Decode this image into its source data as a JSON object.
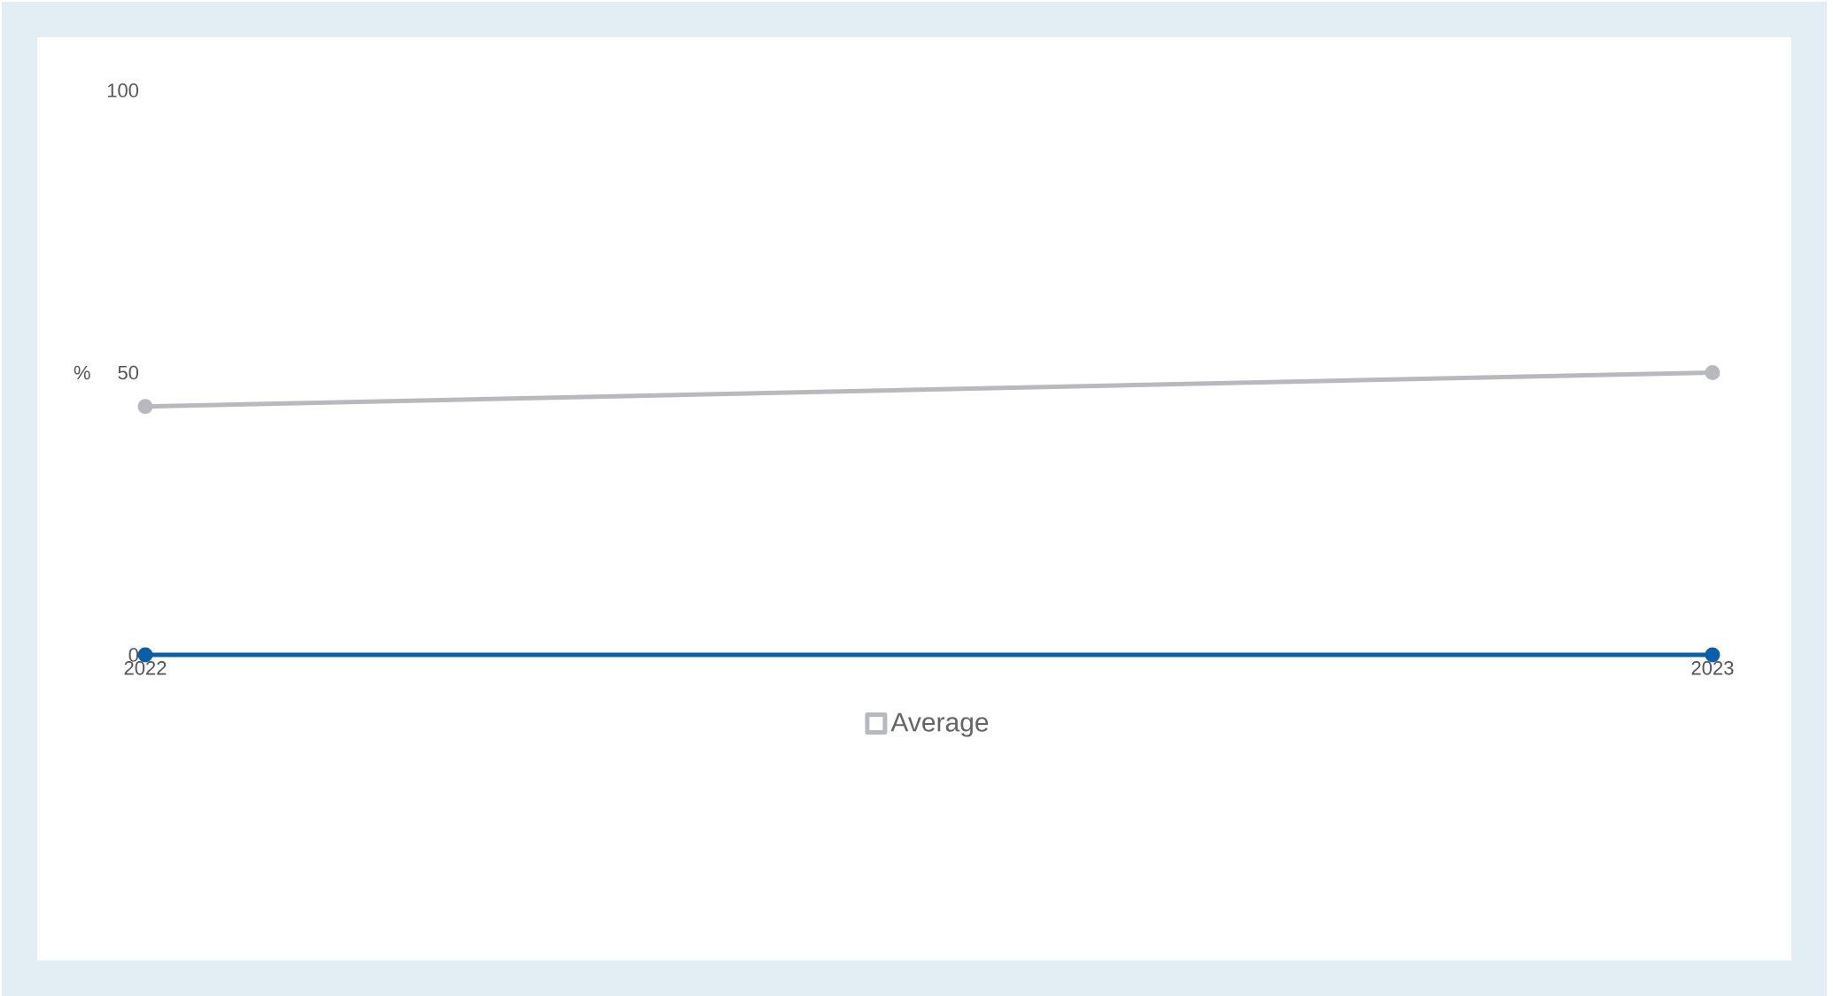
{
  "chart_data": {
    "type": "line",
    "ylabel": "%",
    "categories": [
      "2022",
      "2023"
    ],
    "series": [
      {
        "color": "#0b5fa8",
        "values": [
          0,
          0
        ]
      },
      {
        "name": "Average",
        "color": "#b8b8bf",
        "values": [
          44,
          50
        ]
      }
    ],
    "ylim": [
      0,
      100
    ],
    "yticks": [
      0,
      50,
      100
    ],
    "grid": false,
    "legend": "bottom",
    "marker": "circle",
    "line_style": "solid"
  }
}
